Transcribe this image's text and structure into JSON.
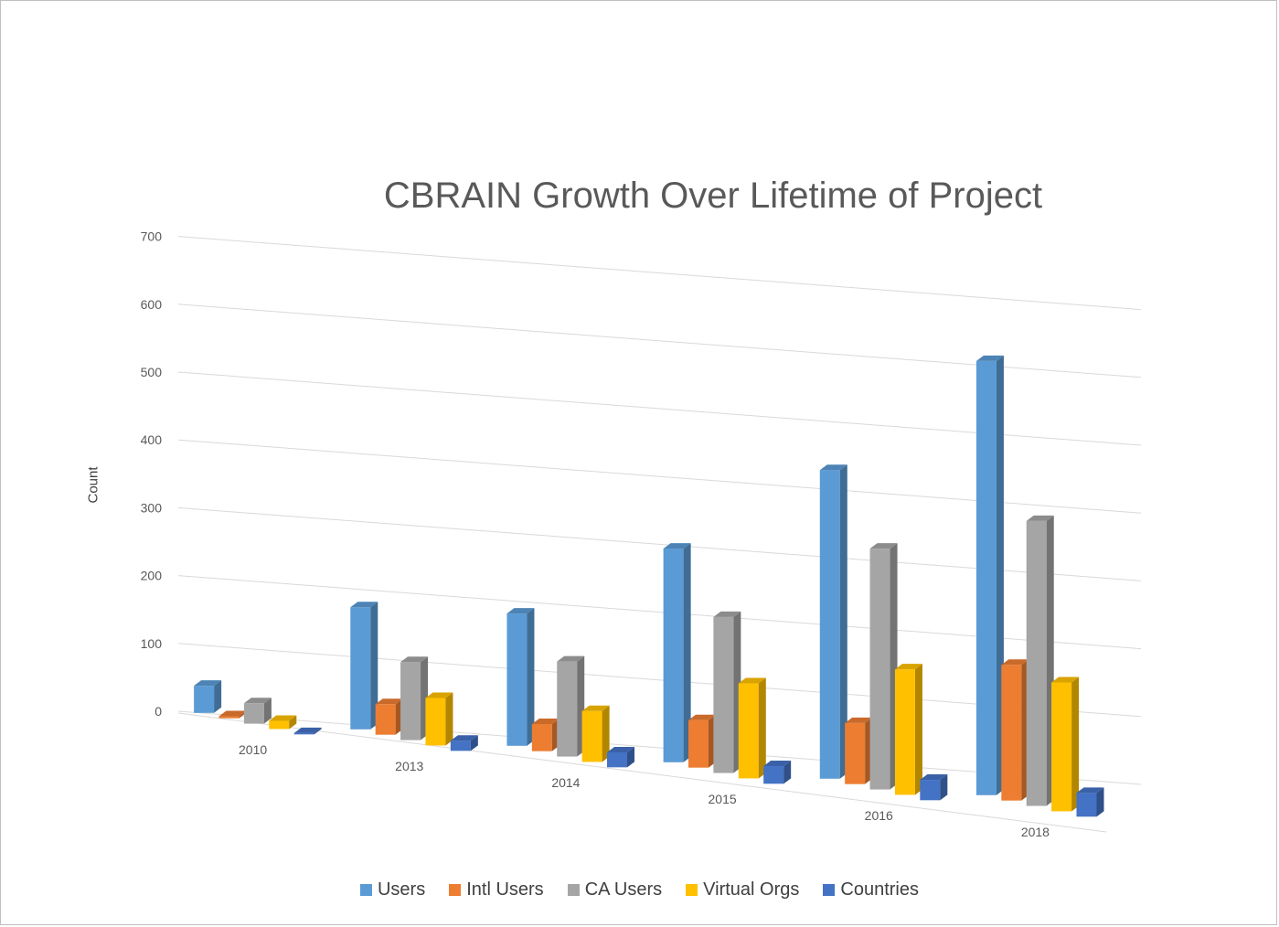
{
  "chart_data": {
    "type": "bar",
    "style": "3d-clustered-column",
    "title": "CBRAIN Growth Over Lifetime of Project",
    "ylabel": "Count",
    "xlabel": "",
    "ylim": [
      0,
      700
    ],
    "y_ticks": [
      "0",
      "100",
      "200",
      "300",
      "400",
      "500",
      "600",
      "700"
    ],
    "categories": [
      "2010",
      "2013",
      "2014",
      "2015",
      "2016",
      "2018"
    ],
    "series": [
      {
        "name": "Users",
        "color": "#5B9BD5",
        "values": [
          40,
          180,
          195,
          315,
          455,
          640
        ]
      },
      {
        "name": "Intl Users",
        "color": "#ED7D31",
        "values": [
          3,
          45,
          40,
          70,
          90,
          200
        ]
      },
      {
        "name": "CA Users",
        "color": "#A5A5A5",
        "values": [
          30,
          115,
          140,
          230,
          355,
          420
        ]
      },
      {
        "name": "Virtual Orgs",
        "color": "#FFC000",
        "values": [
          12,
          70,
          75,
          140,
          185,
          190
        ]
      },
      {
        "name": "Countries",
        "color": "#4472C4",
        "values": [
          2,
          15,
          22,
          26,
          30,
          35
        ]
      }
    ],
    "grid": true,
    "legend_position": "bottom"
  }
}
